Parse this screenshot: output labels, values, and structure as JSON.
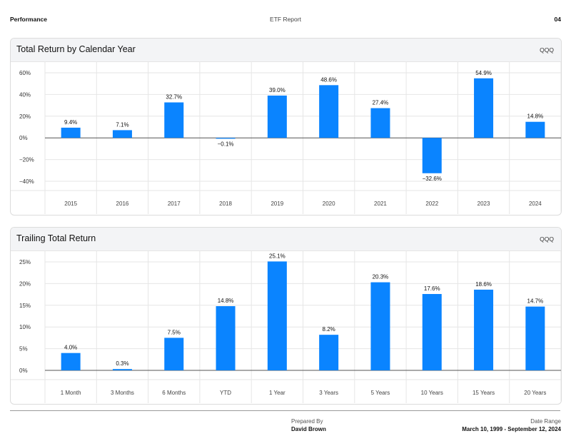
{
  "header": {
    "left": "Performance",
    "center": "ETF Report",
    "right": "04"
  },
  "footer": {
    "prepared_label": "Prepared By",
    "prepared_value": "David Brown",
    "range_label": "Date Range",
    "range_value": "March 10, 1999 - September 12, 2024"
  },
  "colors": {
    "bar": "#0a84ff",
    "grid": "#e6e6e6",
    "zero_line": "#555555"
  },
  "chart_data": [
    {
      "type": "bar",
      "title": "Total Return by Calendar Year",
      "ticker": "QQQ",
      "categories": [
        "2015",
        "2016",
        "2017",
        "2018",
        "2019",
        "2020",
        "2021",
        "2022",
        "2023",
        "2024"
      ],
      "values": [
        9.4,
        7.1,
        32.7,
        -0.1,
        39.0,
        48.6,
        27.4,
        -32.6,
        54.9,
        14.8
      ],
      "value_labels": [
        "9.4%",
        "7.1%",
        "32.7%",
        "−0.1%",
        "39.0%",
        "48.6%",
        "27.4%",
        "−32.6%",
        "54.9%",
        "14.8%"
      ],
      "yticks": [
        60,
        40,
        20,
        0,
        -20,
        -40
      ],
      "ytick_labels": [
        "60%",
        "40%",
        "20%",
        "0%",
        "−20%",
        "−40%"
      ],
      "ylim": [
        -40,
        60
      ],
      "grid": true,
      "legend": "none"
    },
    {
      "type": "bar",
      "title": "Trailing Total Return",
      "ticker": "QQQ",
      "categories": [
        "1 Month",
        "3 Months",
        "6 Months",
        "YTD",
        "1 Year",
        "3 Years",
        "5 Years",
        "10 Years",
        "15 Years",
        "20 Years"
      ],
      "values": [
        4.0,
        0.3,
        7.5,
        14.8,
        25.1,
        8.2,
        20.3,
        17.6,
        18.6,
        14.7
      ],
      "value_labels": [
        "4.0%",
        "0.3%",
        "7.5%",
        "14.8%",
        "25.1%",
        "8.2%",
        "20.3%",
        "17.6%",
        "18.6%",
        "14.7%"
      ],
      "yticks": [
        25,
        20,
        15,
        10,
        5,
        0
      ],
      "ytick_labels": [
        "25%",
        "20%",
        "15%",
        "10%",
        "5%",
        "0%"
      ],
      "ylim": [
        0,
        25
      ],
      "grid": true,
      "legend": "none"
    }
  ]
}
